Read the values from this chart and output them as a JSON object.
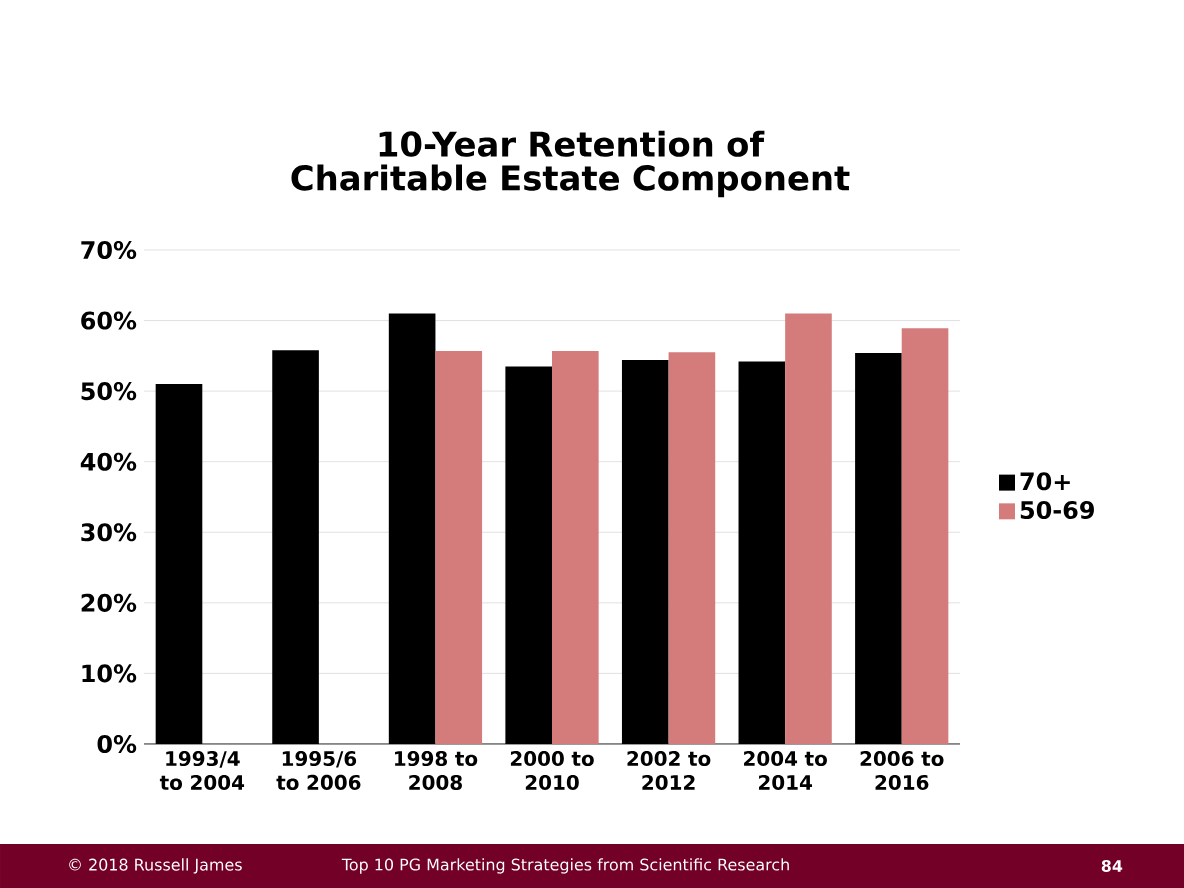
{
  "chart_data": {
    "type": "bar",
    "title": "10-Year Retention of Charitable Estate Component",
    "categories": [
      "1993/4 to 2004",
      "1995/6 to 2006",
      "1998 to 2008",
      "2000 to 2010",
      "2002 to 2012",
      "2004 to 2014",
      "2006 to 2016"
    ],
    "series": [
      {
        "name": "70+",
        "color": "#000000",
        "values": [
          51,
          55.8,
          61,
          53.5,
          54.4,
          54.2,
          55.4
        ]
      },
      {
        "name": "50-69",
        "color": "#d47b7b",
        "values": [
          null,
          null,
          55.7,
          55.7,
          55.5,
          61,
          58.9
        ]
      }
    ],
    "ylim": [
      0,
      70
    ],
    "yticks": [
      {
        "value": 0,
        "label": "0%"
      },
      {
        "value": 10,
        "label": "10%"
      },
      {
        "value": 20,
        "label": "20%"
      },
      {
        "value": 30,
        "label": "30%"
      },
      {
        "value": 40,
        "label": "40%"
      },
      {
        "value": 50,
        "label": "50%"
      },
      {
        "value": 60,
        "label": "60%"
      },
      {
        "value": 70,
        "label": "70%"
      }
    ],
    "grid": "y",
    "legend": "right",
    "annotations": [
      "© 2018 Russell James",
      "Top 10 PG Marketing Strategies from Scientific Research",
      "84"
    ]
  }
}
